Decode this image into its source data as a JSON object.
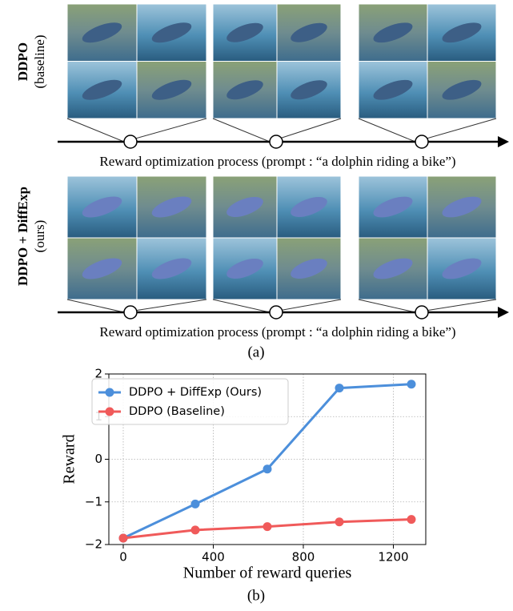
{
  "figure_a": {
    "rows": [
      {
        "method": "DDPO",
        "note": "(baseline)",
        "caption": "Reward optimization process (prompt : “a dolphin riding a bike”)"
      },
      {
        "method": "DDPO + DiffExp",
        "note": "(ours)",
        "caption": "Reward optimization process (prompt : “a dolphin riding a bike”)"
      }
    ],
    "label": "(a)"
  },
  "chart_data": {
    "type": "line",
    "x": [
      0,
      320,
      640,
      960,
      1280
    ],
    "series": [
      {
        "name": "DDPO + DiffExp (Ours)",
        "color": "#4c8fdb",
        "values": [
          -1.85,
          -1.05,
          -0.23,
          1.67,
          1.76
        ]
      },
      {
        "name": "DDPO (Baseline)",
        "color": "#f05a5a",
        "values": [
          -1.85,
          -1.66,
          -1.58,
          -1.47,
          -1.41
        ]
      }
    ],
    "xlabel": "Number of reward queries",
    "ylabel": "Reward",
    "xlim": [
      -64,
      1344
    ],
    "ylim": [
      -2,
      2
    ],
    "xticks": [
      0,
      400,
      800,
      1200
    ],
    "yticks": [
      {
        "value": -2,
        "label": "−2"
      },
      {
        "value": -1,
        "label": "−1"
      },
      0,
      1,
      2
    ],
    "grid": true,
    "legend": "upper left"
  },
  "label_b": "(b)"
}
